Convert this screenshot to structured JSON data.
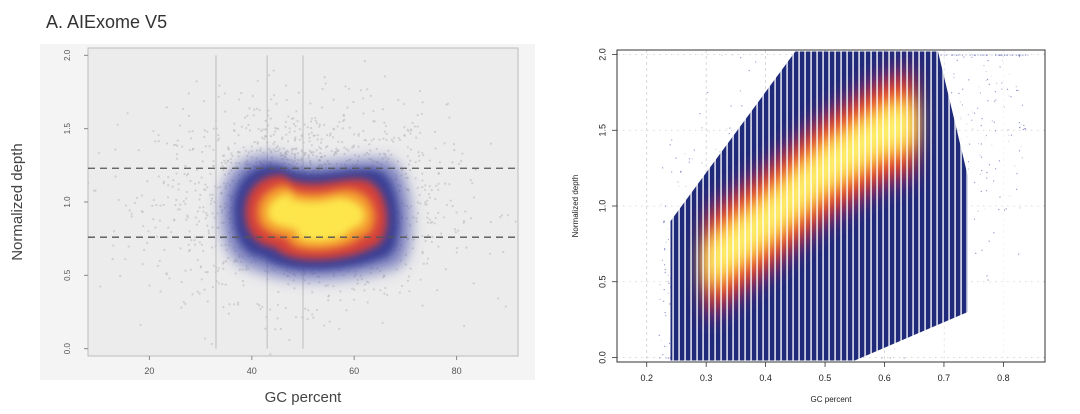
{
  "chart_data": [
    {
      "type": "scatter",
      "panel_label": "A.",
      "title": "AIExome V5",
      "xlabel": "GC percent",
      "ylabel": "Normalized depth",
      "xlim": [
        8,
        92
      ],
      "ylim": [
        -0.05,
        2.05
      ],
      "xticks": [
        20,
        40,
        60,
        80
      ],
      "yticks": [
        0.0,
        0.5,
        1.0,
        1.5,
        2.0
      ],
      "hlines": [
        0.76,
        1.23
      ],
      "density_core": {
        "x_range": [
          36,
          70
        ],
        "y_range": [
          0.62,
          1.25
        ],
        "peak": [
          45,
          1.02
        ]
      },
      "grid": false,
      "colors": {
        "background_points": "#bfbfbf",
        "outer": "#3b3f95",
        "mid": "#d43f3a",
        "core": "#fde64b"
      }
    },
    {
      "type": "scatter",
      "xlabel": "GC percent",
      "ylabel": "Normalized depth",
      "xlim": [
        0.15,
        0.87
      ],
      "ylim": [
        -0.03,
        2.03
      ],
      "xticks": [
        0.2,
        0.3,
        0.4,
        0.5,
        0.6,
        0.7,
        0.8
      ],
      "yticks": [
        0.0,
        0.5,
        1.0,
        1.5,
        2.0
      ],
      "trend": {
        "x": [
          0.3,
          0.4,
          0.5,
          0.6,
          0.65
        ],
        "y": [
          0.6,
          0.9,
          1.25,
          1.5,
          1.55
        ]
      },
      "grid": true,
      "colors": {
        "points": "#1f2a7a",
        "mid": "#e23b2a",
        "core": "#fff06a"
      }
    }
  ]
}
